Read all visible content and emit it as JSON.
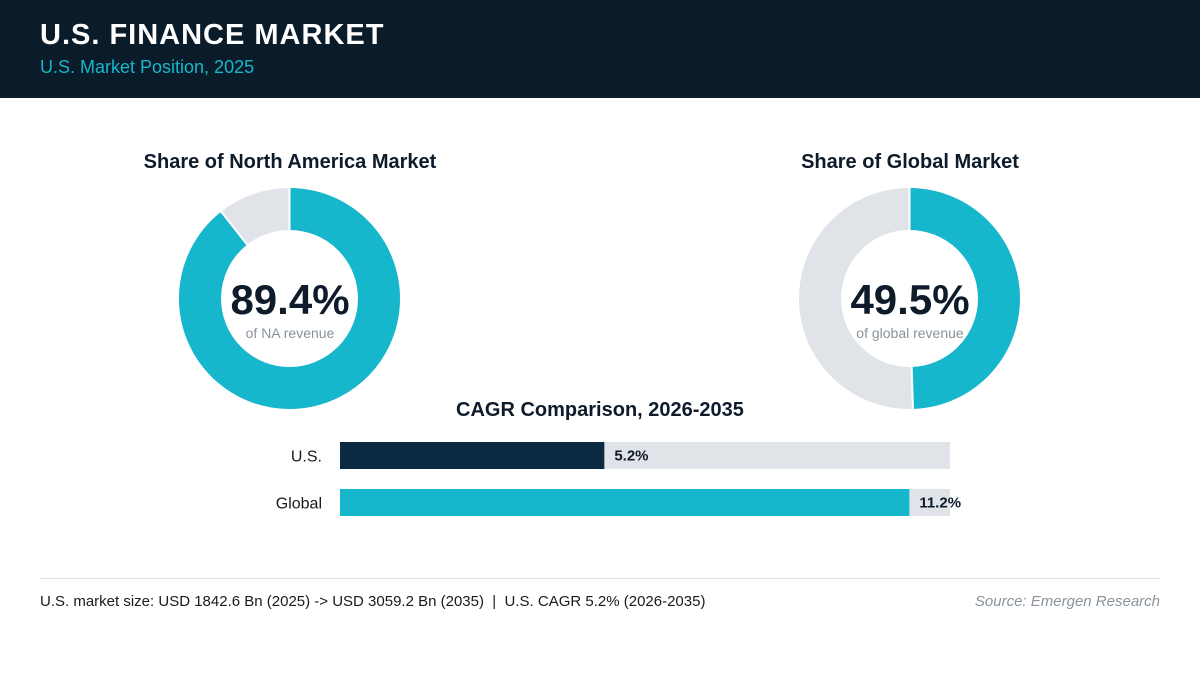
{
  "header": {
    "title": "U.S. FINANCE MARKET",
    "subtitle": "U.S. Market Position, 2025"
  },
  "colors": {
    "header_bg": "#0a1b2a",
    "accent": "#16b7cc",
    "dark_bar": "#0c2942",
    "track": "#e0e4e8"
  },
  "chart_data": [
    {
      "type": "pie",
      "title": "Share of North America Market",
      "value": 89.4,
      "value_label": "89.4%",
      "caption": "of NA revenue"
    },
    {
      "type": "pie",
      "title": "Share of Global Market",
      "value": 49.5,
      "value_label": "49.5%",
      "caption": "of global revenue"
    },
    {
      "type": "bar",
      "orientation": "horizontal",
      "title": "CAGR Comparison, 2026-2035",
      "categories": [
        "U.S.",
        "Global"
      ],
      "values": [
        5.2,
        11.2
      ],
      "value_labels": [
        "5.2%",
        "11.2%"
      ],
      "xlim": [
        0,
        12
      ]
    }
  ],
  "footer": {
    "note": "U.S. market size: USD 1842.6 Bn (2025) -> USD 3059.2 Bn (2035)  |  U.S. CAGR 5.2% (2026-2035)",
    "source": "Source: Emergen Research"
  }
}
